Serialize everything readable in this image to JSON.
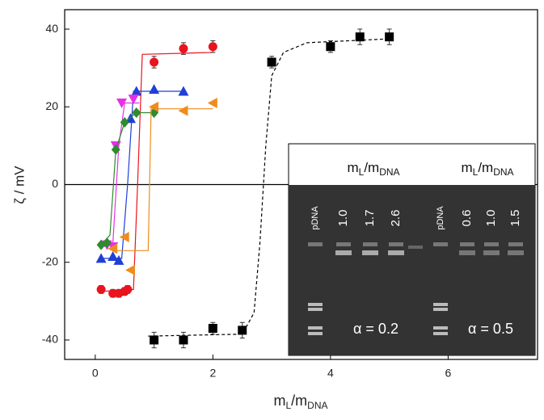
{
  "chart_data": {
    "type": "scatter",
    "xlabel": [
      "m",
      "L",
      "/m",
      "DNA"
    ],
    "ylabel": "ζ / mV",
    "xlim": [
      -0.52,
      7.52
    ],
    "ylim": [
      -45,
      45
    ],
    "xticks": [
      0,
      2,
      4,
      6
    ],
    "yticks": [
      -40,
      -20,
      0,
      20,
      40
    ],
    "zero_line": true,
    "series": [
      {
        "color": "#000000",
        "marker": "square",
        "dashed": true,
        "x": [
          1,
          1.5,
          2,
          2.5,
          3,
          4,
          4.5,
          5
        ],
        "values": [
          -40,
          -40,
          -37,
          -37.5,
          31.5,
          35.5,
          38,
          38
        ],
        "errors": [
          2,
          2,
          1.5,
          2,
          1.5,
          1.5,
          2,
          2
        ],
        "fit": {
          "x": [
            0.9,
            2.5,
            2.7,
            2.8,
            2.9,
            3.0,
            3.2,
            3.6,
            5
          ],
          "values": [
            -39,
            -38.5,
            -33,
            -15,
            10,
            28,
            34,
            36.5,
            37.5
          ]
        }
      },
      {
        "color": "#e8141e",
        "marker": "circle",
        "dashed": false,
        "x": [
          0.1,
          0.3,
          0.4,
          0.5,
          0.55,
          1,
          1.5,
          2
        ],
        "values": [
          -27,
          -28,
          -28,
          -27.5,
          -27,
          31.5,
          35,
          35.5
        ],
        "errors": [
          1,
          1,
          1,
          1,
          1,
          1.5,
          1.5,
          1.5
        ],
        "fit": {
          "x": [
            0.1,
            0.65,
            0.72,
            0.8,
            2
          ],
          "values": [
            -27.5,
            -27,
            0,
            33.5,
            34
          ]
        }
      },
      {
        "color": "#1f3fd6",
        "marker": "triangle-up",
        "dashed": false,
        "x": [
          0.1,
          0.3,
          0.4,
          0.6,
          0.7,
          1,
          1.5
        ],
        "values": [
          -19,
          -18.5,
          -19.5,
          17,
          24,
          24.5,
          24
        ],
        "fit": {
          "x": [
            0.1,
            0.45,
            0.55,
            0.65,
            1.5
          ],
          "values": [
            -19,
            -19,
            0,
            24,
            24
          ]
        }
      },
      {
        "color": "#e630e6",
        "marker": "triangle-down",
        "dashed": false,
        "x": [
          0.2,
          0.3,
          0.35,
          0.45,
          0.65
        ],
        "values": [
          -15.5,
          -16,
          10,
          21,
          22
        ],
        "fit": {
          "x": [
            0.15,
            0.3,
            0.4,
            0.5,
            0.75
          ],
          "values": [
            -16,
            -15,
            10,
            21,
            21
          ]
        }
      },
      {
        "color": "#2e8b2e",
        "marker": "diamond",
        "dashed": false,
        "x": [
          0.1,
          0.2,
          0.35,
          0.5,
          0.7,
          1
        ],
        "values": [
          -15.5,
          -15,
          9,
          16,
          18.5,
          18.5
        ],
        "fit": {
          "x": [
            0.1,
            0.25,
            0.35,
            0.5,
            0.7,
            1
          ],
          "values": [
            -15.5,
            -13,
            9,
            16,
            18.5,
            18.5
          ]
        }
      },
      {
        "color": "#f08c1e",
        "marker": "triangle-left",
        "dashed": false,
        "x": [
          0.3,
          0.5,
          0.6,
          1,
          1.5,
          2
        ],
        "values": [
          -16.5,
          -13.5,
          -22,
          20,
          19,
          21
        ],
        "fit": {
          "x": [
            0.35,
            0.9,
            0.95,
            2
          ],
          "values": [
            -17,
            -17,
            19.5,
            19.5
          ]
        }
      }
    ]
  },
  "inset": {
    "headers": [
      [
        "m",
        "L",
        "/m",
        "DNA"
      ],
      [
        "m",
        "L",
        "/m",
        "DNA"
      ]
    ],
    "lanes": [
      "pDNA",
      "1.0",
      "1.7",
      "2.6",
      "pDNA",
      "0.6",
      "1.0",
      "1.5"
    ],
    "alphas": [
      "α = 0.2",
      "α = 0.5"
    ]
  }
}
